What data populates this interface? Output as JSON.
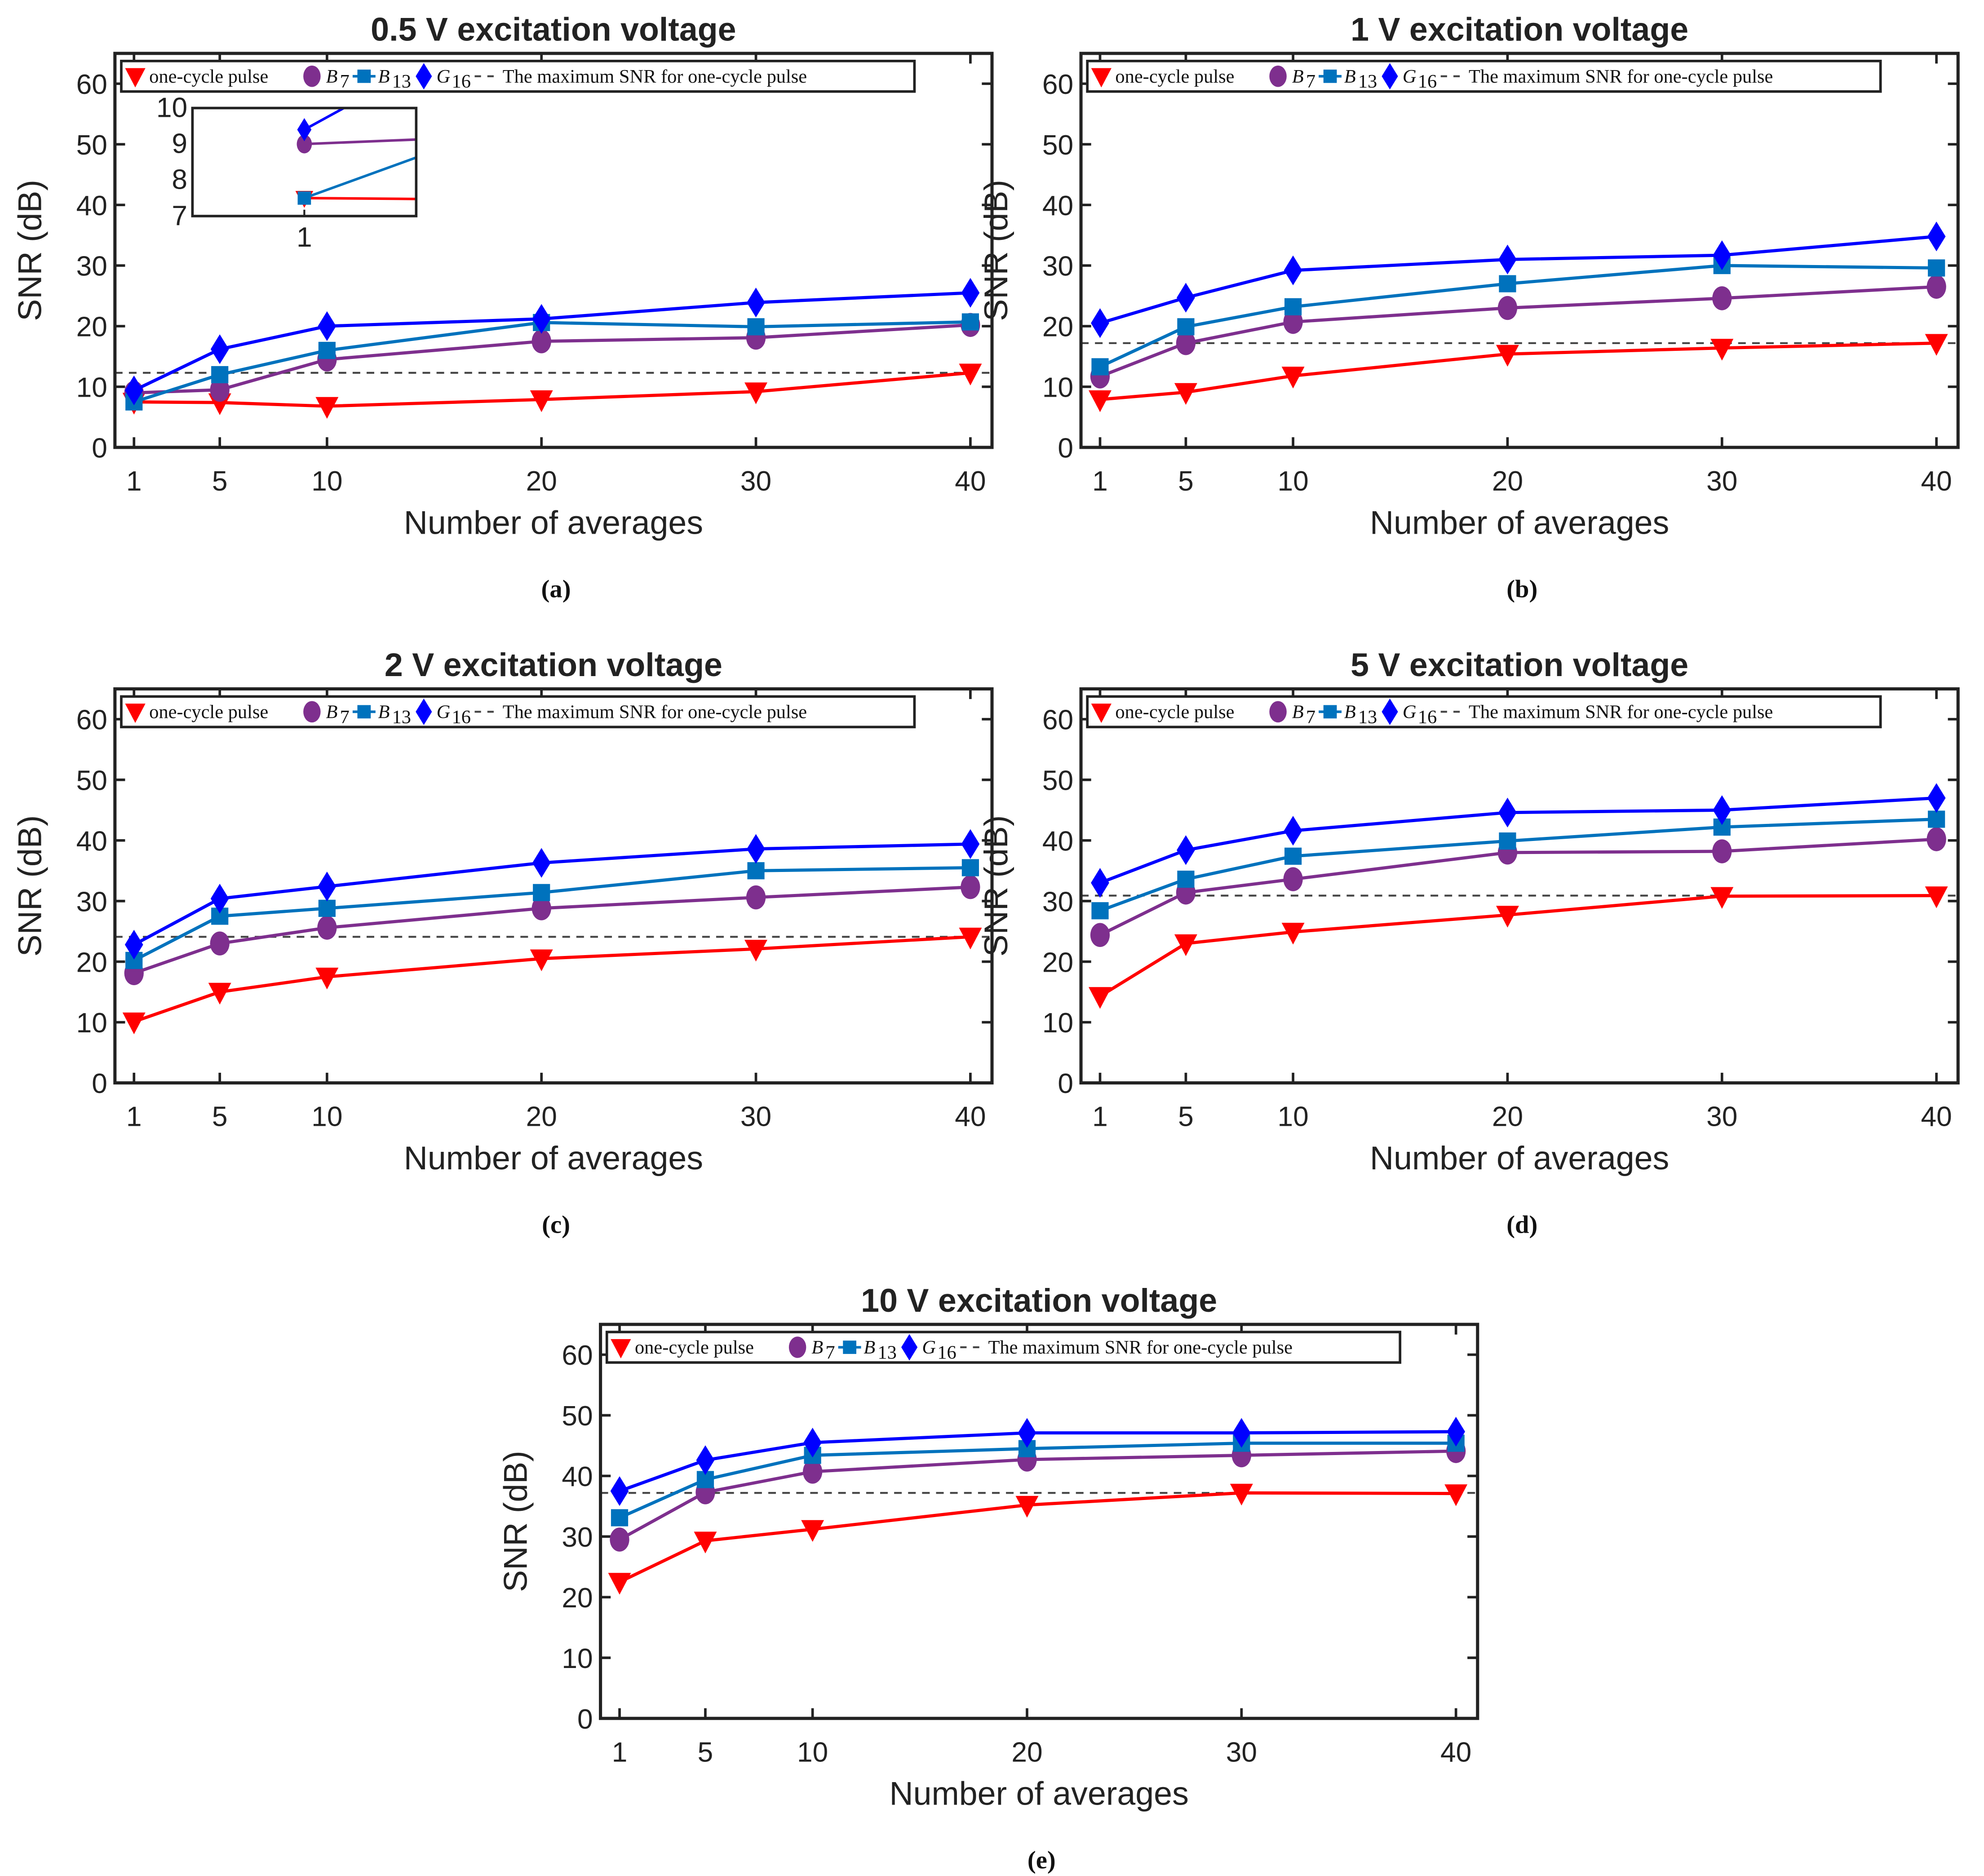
{
  "chart_data": [
    {
      "type": "line",
      "panel": "(a)",
      "title": "0.5 V excitation voltage",
      "xlabel": "Number of averages",
      "ylabel": "SNR (dB)",
      "x": [
        1,
        5,
        10,
        20,
        30,
        40
      ],
      "xticks": [
        1,
        5,
        10,
        20,
        30,
        40
      ],
      "yticks": [
        0,
        10,
        20,
        30,
        40,
        50,
        60
      ],
      "ylim": [
        0,
        65
      ],
      "series": [
        {
          "name": "one-cycle pulse",
          "values": [
            7.5,
            7.4,
            6.8,
            7.9,
            9.2,
            12.3
          ]
        },
        {
          "name": "B7",
          "values": [
            9.0,
            9.5,
            14.5,
            17.5,
            18.1,
            20.2
          ]
        },
        {
          "name": "B13",
          "values": [
            7.5,
            12.0,
            16.0,
            20.6,
            19.9,
            20.7
          ]
        },
        {
          "name": "G16",
          "values": [
            9.4,
            16.2,
            20.0,
            21.2,
            23.9,
            25.5
          ]
        }
      ],
      "max_line": 12.3,
      "inset": {
        "xlim": [
          0,
          2
        ],
        "ylim": [
          7,
          10
        ],
        "xticks": [
          1
        ],
        "yticks": [
          7,
          8,
          9,
          10
        ]
      }
    },
    {
      "type": "line",
      "panel": "(b)",
      "title": "1 V excitation voltage",
      "xlabel": "Number of averages",
      "ylabel": "SNR (dB)",
      "x": [
        1,
        5,
        10,
        20,
        30,
        40
      ],
      "xticks": [
        1,
        5,
        10,
        20,
        30,
        40
      ],
      "yticks": [
        0,
        10,
        20,
        30,
        40,
        50,
        60
      ],
      "ylim": [
        0,
        65
      ],
      "series": [
        {
          "name": "one-cycle pulse",
          "values": [
            7.9,
            9.1,
            11.8,
            15.4,
            16.4,
            17.2
          ]
        },
        {
          "name": "B7",
          "values": [
            11.7,
            17.2,
            20.7,
            23.0,
            24.6,
            26.5
          ]
        },
        {
          "name": "B13",
          "values": [
            13.3,
            19.9,
            23.2,
            27.0,
            30.0,
            29.6
          ]
        },
        {
          "name": "G16",
          "values": [
            20.5,
            24.7,
            29.2,
            31.0,
            31.7,
            34.8
          ]
        }
      ],
      "max_line": 17.2
    },
    {
      "type": "line",
      "panel": "(c)",
      "title": "2 V excitation voltage",
      "xlabel": "Number of averages",
      "ylabel": "SNR (dB)",
      "x": [
        1,
        5,
        10,
        20,
        30,
        40
      ],
      "xticks": [
        1,
        5,
        10,
        20,
        30,
        40
      ],
      "yticks": [
        0,
        10,
        20,
        30,
        40,
        50,
        60
      ],
      "ylim": [
        0,
        65
      ],
      "series": [
        {
          "name": "one-cycle pulse",
          "values": [
            10.1,
            15.0,
            17.5,
            20.5,
            22.1,
            24.1
          ]
        },
        {
          "name": "B7",
          "values": [
            18.1,
            23.0,
            25.6,
            28.8,
            30.6,
            32.3
          ]
        },
        {
          "name": "B13",
          "values": [
            20.2,
            27.5,
            28.8,
            31.4,
            35.0,
            35.5
          ]
        },
        {
          "name": "G16",
          "values": [
            22.8,
            30.4,
            32.4,
            36.3,
            38.6,
            39.4
          ]
        }
      ],
      "max_line": 24.1
    },
    {
      "type": "line",
      "panel": "(d)",
      "title": "5 V excitation voltage",
      "xlabel": "Number of averages",
      "ylabel": "SNR (dB)",
      "x": [
        1,
        5,
        10,
        20,
        30,
        40
      ],
      "xticks": [
        1,
        5,
        10,
        20,
        30,
        40
      ],
      "yticks": [
        0,
        10,
        20,
        30,
        40,
        50,
        60
      ],
      "ylim": [
        0,
        65
      ],
      "series": [
        {
          "name": "one-cycle pulse",
          "values": [
            14.3,
            23.0,
            24.9,
            27.7,
            30.8,
            30.9
          ]
        },
        {
          "name": "B7",
          "values": [
            24.4,
            31.4,
            33.6,
            38.0,
            38.2,
            40.2
          ]
        },
        {
          "name": "B13",
          "values": [
            28.4,
            33.6,
            37.4,
            39.9,
            42.2,
            43.5
          ]
        },
        {
          "name": "G16",
          "values": [
            33.0,
            38.4,
            41.6,
            44.6,
            45.0,
            47.0
          ]
        }
      ],
      "max_line": 30.9
    },
    {
      "type": "line",
      "panel": "(e)",
      "title": "10 V excitation voltage",
      "xlabel": "Number of averages",
      "ylabel": "SNR (dB)",
      "x": [
        1,
        5,
        10,
        20,
        30,
        40
      ],
      "xticks": [
        1,
        5,
        10,
        20,
        30,
        40
      ],
      "yticks": [
        0,
        10,
        20,
        30,
        40,
        50,
        60
      ],
      "ylim": [
        0,
        65
      ],
      "series": [
        {
          "name": "one-cycle pulse",
          "values": [
            22.5,
            29.3,
            31.2,
            35.2,
            37.2,
            37.1
          ]
        },
        {
          "name": "B7",
          "values": [
            29.5,
            37.3,
            40.7,
            42.7,
            43.4,
            44.1
          ]
        },
        {
          "name": "B13",
          "values": [
            33.1,
            39.4,
            43.4,
            44.5,
            45.4,
            45.4
          ]
        },
        {
          "name": "G16",
          "values": [
            37.5,
            42.6,
            45.5,
            47.1,
            47.1,
            47.3
          ]
        }
      ],
      "max_line": 37.2
    }
  ],
  "legend": {
    "one_cycle": "one-cycle pulse",
    "b7": {
      "base": "B",
      "sub": "7"
    },
    "b13": {
      "base": "B",
      "sub": "13"
    },
    "g16": {
      "base": "G",
      "sub": "16"
    },
    "max_line": "The maximum SNR for one-cycle pulse"
  },
  "colors": {
    "one_cycle": "#ff0000",
    "b7": "#7e2f8e",
    "b13": "#0072bd",
    "g16": "#0000ff",
    "max_line": "#444444"
  }
}
